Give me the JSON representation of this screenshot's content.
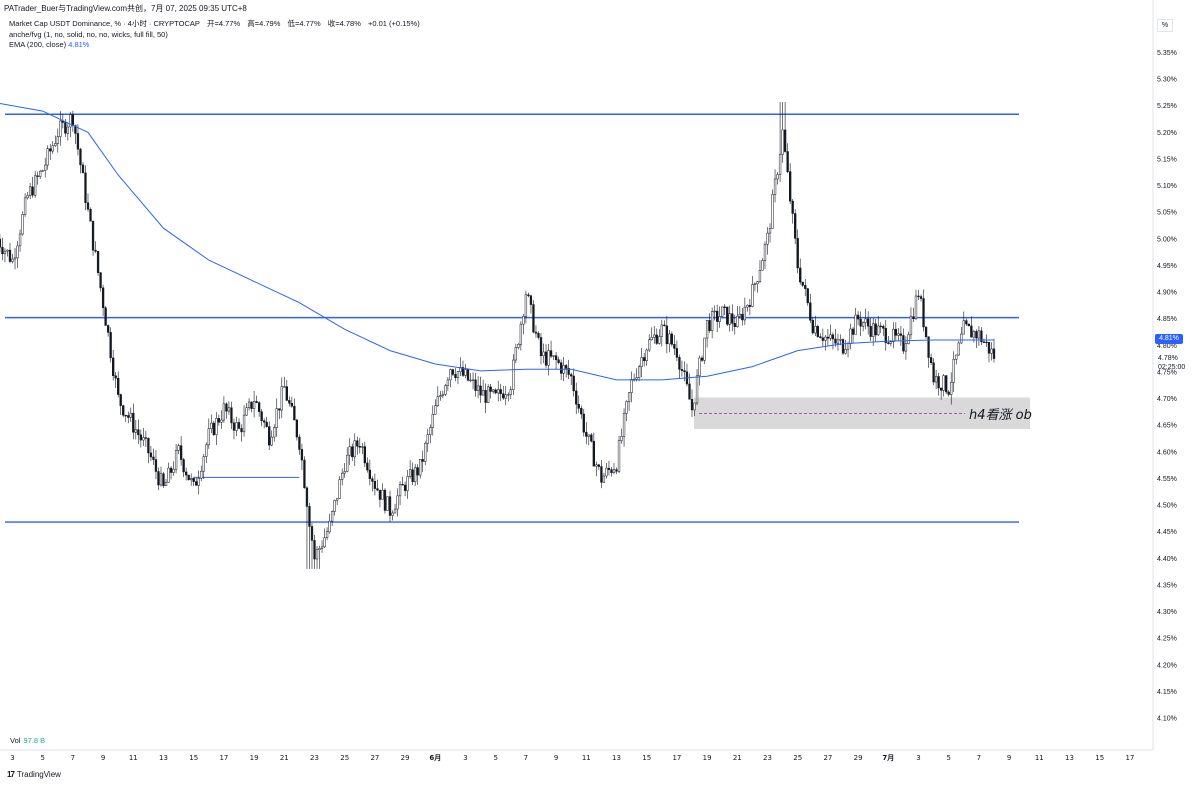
{
  "header": {
    "publisher_line": "PATrader_Buer与TradingView.com共创，7月 07, 2025 09:35 UTC+8"
  },
  "legend": {
    "symbol_line": "Market Cap USDT Dominance, % · 4小时 · CRYPTOCAP",
    "open": "开=4.77%",
    "high": "高=4.79%",
    "low": "低=4.77%",
    "close": "收=4.78%",
    "change": "+0.01 (+0.15%)",
    "indicator_line": "anche/fvg (1, no, solid, no, no, wicks, full fill, 50)",
    "ema_label": "EMA (200, close)",
    "ema_value": "4.81%"
  },
  "scale_button": "%",
  "volume": {
    "label": "Vol",
    "value": "97.8 B"
  },
  "brand": {
    "name": "TradingView",
    "logo_text": "17"
  },
  "annotation": {
    "ob_label": "h4看涨 ob"
  },
  "price_tags": {
    "ema": "4.81%",
    "last": "4.78%",
    "countdown": "02:25:00"
  },
  "colors": {
    "candle": "#131722",
    "ema": "#2962ff",
    "level_line": "#2962ff",
    "ob_box": "#d9d9d9",
    "ob_mid": "#9c27b0"
  },
  "chart_data": {
    "type": "candlestick",
    "title": "Market Cap USDT Dominance, %",
    "timeframe": "4小时",
    "y_axis": {
      "unit": "%",
      "range": [
        4.08,
        5.38
      ],
      "ticks": [
        "5.35%",
        "5.30%",
        "5.25%",
        "5.20%",
        "5.15%",
        "5.10%",
        "5.05%",
        "5.00%",
        "4.95%",
        "4.90%",
        "4.85%",
        "4.80%",
        "4.75%",
        "4.70%",
        "4.65%",
        "4.60%",
        "4.55%",
        "4.50%",
        "4.45%",
        "4.40%",
        "4.35%",
        "4.30%",
        "4.25%",
        "4.20%",
        "4.15%",
        "4.10%"
      ]
    },
    "x_axis": {
      "labels": [
        "3",
        "5",
        "7",
        "9",
        "11",
        "13",
        "15",
        "17",
        "19",
        "21",
        "23",
        "25",
        "27",
        "29",
        "6月",
        "3",
        "5",
        "7",
        "9",
        "11",
        "13",
        "15",
        "17",
        "19",
        "21",
        "23",
        "25",
        "27",
        "29",
        "7月",
        "3",
        "5",
        "7",
        "9",
        "11",
        "13",
        "15",
        "17"
      ]
    },
    "horizontal_levels": [
      5.234,
      4.852,
      4.468
    ],
    "local_level": {
      "value": 4.552,
      "from_date": "5月15",
      "to_date": "5月22"
    },
    "ob_zone": {
      "top": 4.702,
      "bottom": 4.643,
      "mid": 4.672,
      "from_date": "6月17"
    },
    "price_path": [
      [
        "5月2",
        5.0
      ],
      [
        "5月3",
        4.96
      ],
      [
        "5月4",
        5.08
      ],
      [
        "5月5",
        5.13
      ],
      [
        "5月6",
        5.2
      ],
      [
        "5月7",
        5.23
      ],
      [
        "5月8",
        5.05
      ],
      [
        "5月9",
        4.88
      ],
      [
        "5月10",
        4.7
      ],
      [
        "5月11",
        4.65
      ],
      [
        "5月12",
        4.6
      ],
      [
        "5月13",
        4.53
      ],
      [
        "5月14",
        4.6
      ],
      [
        "5月15",
        4.53
      ],
      [
        "5月16",
        4.63
      ],
      [
        "5月17",
        4.68
      ],
      [
        "5月18",
        4.64
      ],
      [
        "5月19",
        4.7
      ],
      [
        "5月20",
        4.63
      ],
      [
        "5月21",
        4.72
      ],
      [
        "5月22",
        4.62
      ],
      [
        "5月23",
        4.4
      ],
      [
        "5月24",
        4.46
      ],
      [
        "5月25",
        4.58
      ],
      [
        "5月26",
        4.62
      ],
      [
        "5月27",
        4.54
      ],
      [
        "5月28",
        4.49
      ],
      [
        "5月29",
        4.54
      ],
      [
        "5月30",
        4.57
      ],
      [
        "5月31",
        4.68
      ],
      [
        "6月1",
        4.76
      ],
      [
        "6月2",
        4.74
      ],
      [
        "6月3",
        4.71
      ],
      [
        "6月4",
        4.7
      ],
      [
        "6月5",
        4.73
      ],
      [
        "6月6",
        4.9
      ],
      [
        "6月7",
        4.78
      ],
      [
        "6月8",
        4.77
      ],
      [
        "6月9",
        4.74
      ],
      [
        "6月10",
        4.63
      ],
      [
        "6月11",
        4.55
      ],
      [
        "6月12",
        4.58
      ],
      [
        "6月13",
        4.73
      ],
      [
        "6月14",
        4.8
      ],
      [
        "6月15",
        4.83
      ],
      [
        "6月16",
        4.79
      ],
      [
        "6月17",
        4.68
      ],
      [
        "6月18",
        4.84
      ],
      [
        "6月19",
        4.86
      ],
      [
        "6月20",
        4.84
      ],
      [
        "6月21",
        4.9
      ],
      [
        "6月22",
        5.0
      ],
      [
        "6月23",
        5.2
      ],
      [
        "6月24",
        4.95
      ],
      [
        "6月25",
        4.84
      ],
      [
        "6月26",
        4.81
      ],
      [
        "6月27",
        4.8
      ],
      [
        "6月28",
        4.85
      ],
      [
        "6月29",
        4.83
      ],
      [
        "6月30",
        4.82
      ],
      [
        "7月1",
        4.8
      ],
      [
        "7月2",
        4.9
      ],
      [
        "7月3",
        4.74
      ],
      [
        "7月4",
        4.72
      ],
      [
        "7月5",
        4.83
      ],
      [
        "7月6",
        4.82
      ],
      [
        "7月7",
        4.78
      ]
    ],
    "ema_path": [
      [
        "5月1",
        5.26
      ],
      [
        "5月5",
        5.24
      ],
      [
        "5月8",
        5.2
      ],
      [
        "5月10",
        5.12
      ],
      [
        "5月13",
        5.02
      ],
      [
        "5月16",
        4.96
      ],
      [
        "5月19",
        4.92
      ],
      [
        "5月22",
        4.88
      ],
      [
        "5月25",
        4.83
      ],
      [
        "5月28",
        4.79
      ],
      [
        "5月31",
        4.765
      ],
      [
        "6月3",
        4.752
      ],
      [
        "6月6",
        4.755
      ],
      [
        "6月9",
        4.755
      ],
      [
        "6月12",
        4.735
      ],
      [
        "6月15",
        4.735
      ],
      [
        "6月18",
        4.742
      ],
      [
        "6月21",
        4.76
      ],
      [
        "6月24",
        4.79
      ],
      [
        "6月27",
        4.803
      ],
      [
        "6月30",
        4.808
      ],
      [
        "7月3",
        4.81
      ],
      [
        "7月7",
        4.81
      ]
    ]
  }
}
